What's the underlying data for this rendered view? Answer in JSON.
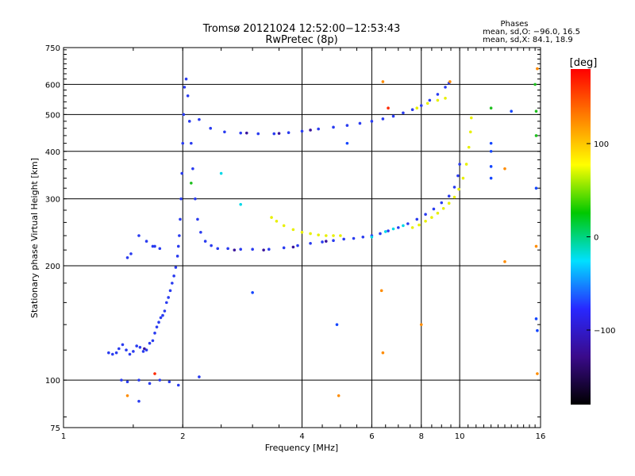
{
  "header": {
    "title_line1": "Tromsø 20121024 12:52:00−12:53:43",
    "title_line2": "RwPretec (8p)",
    "stats_title": "Phases",
    "stats_o": "mean, sd,O: −96.0, 16.5",
    "stats_x": "mean, sd,X:  84.1, 18.9"
  },
  "chart_data": {
    "type": "scatter",
    "xlabel": "Frequency [MHz]",
    "ylabel": "Stationary phase Virtual Height [km]",
    "xscale": "log",
    "yscale": "log",
    "xlim": [
      1,
      16
    ],
    "ylim": [
      75,
      750
    ],
    "x_ticks": [
      1,
      2,
      4,
      6,
      8,
      10,
      16
    ],
    "x_tick_labels": [
      "1",
      "2",
      "4",
      "6",
      "8",
      "10",
      "16"
    ],
    "y_ticks": [
      75,
      100,
      200,
      300,
      400,
      500,
      600,
      750
    ],
    "y_tick_labels": [
      "75",
      "100",
      "200",
      "300",
      "400",
      "500",
      "600",
      "750"
    ],
    "gridlines_x": [
      2,
      4,
      6,
      8,
      10
    ],
    "gridlines_y": [
      100,
      200,
      300,
      400,
      500,
      600
    ],
    "colorbar": {
      "label": "[deg]",
      "range": [
        -180,
        180
      ],
      "tick_values": [
        100,
        0,
        -100
      ],
      "tick_labels": [
        "100",
        "0",
        "−100"
      ],
      "stops": [
        "#000000",
        "#3a0a8a",
        "#2828ff",
        "#00e0ff",
        "#00c800",
        "#ffff00",
        "#ff8000",
        "#ff0000"
      ]
    },
    "series": [
      {
        "color": "#2a3cf0",
        "points": [
          [
            1.3,
            118
          ],
          [
            1.33,
            117
          ],
          [
            1.36,
            118
          ],
          [
            1.38,
            121
          ],
          [
            1.41,
            124
          ],
          [
            1.44,
            120
          ],
          [
            1.47,
            117
          ],
          [
            1.5,
            119
          ],
          [
            1.53,
            123
          ],
          [
            1.56,
            122
          ],
          [
            1.59,
            119
          ],
          [
            1.62,
            120
          ],
          [
            1.65,
            125
          ],
          [
            1.68,
            127
          ],
          [
            1.7,
            133
          ],
          [
            1.72,
            138
          ],
          [
            1.74,
            142
          ],
          [
            1.76,
            146
          ],
          [
            1.78,
            148
          ],
          [
            1.8,
            152
          ],
          [
            1.82,
            160
          ],
          [
            1.84,
            165
          ],
          [
            1.86,
            172
          ],
          [
            1.88,
            180
          ],
          [
            1.9,
            188
          ],
          [
            1.92,
            198
          ],
          [
            1.94,
            212
          ],
          [
            1.95,
            225
          ],
          [
            1.96,
            240
          ],
          [
            1.97,
            265
          ],
          [
            1.98,
            300
          ],
          [
            1.99,
            350
          ],
          [
            2.0,
            420
          ],
          [
            2.01,
            500
          ],
          [
            2.02,
            590
          ],
          [
            2.04,
            620
          ],
          [
            2.06,
            560
          ],
          [
            2.08,
            480
          ],
          [
            2.1,
            420
          ],
          [
            2.12,
            360
          ],
          [
            2.15,
            300
          ],
          [
            2.18,
            265
          ],
          [
            2.22,
            245
          ],
          [
            2.28,
            232
          ],
          [
            2.36,
            226
          ],
          [
            2.45,
            222
          ],
          [
            2.6,
            222
          ],
          [
            2.8,
            221
          ],
          [
            3.0,
            221
          ],
          [
            3.3,
            221
          ],
          [
            3.6,
            223
          ],
          [
            3.9,
            226
          ],
          [
            4.2,
            229
          ],
          [
            4.5,
            231
          ],
          [
            4.8,
            233
          ],
          [
            5.1,
            235
          ],
          [
            5.4,
            236
          ],
          [
            5.7,
            238
          ],
          [
            6.0,
            240
          ],
          [
            6.3,
            243
          ],
          [
            6.6,
            247
          ],
          [
            7.0,
            252
          ],
          [
            7.4,
            258
          ],
          [
            7.8,
            265
          ],
          [
            8.2,
            273
          ],
          [
            8.6,
            282
          ],
          [
            9.0,
            293
          ],
          [
            9.4,
            305
          ],
          [
            9.7,
            322
          ],
          [
            9.9,
            345
          ],
          [
            10.0,
            370
          ],
          [
            2.2,
            485
          ],
          [
            2.35,
            460
          ],
          [
            2.55,
            450
          ],
          [
            2.8,
            447
          ],
          [
            3.1,
            445
          ],
          [
            3.4,
            445
          ],
          [
            3.7,
            448
          ],
          [
            4.0,
            452
          ],
          [
            4.4,
            458
          ],
          [
            4.8,
            463
          ],
          [
            5.2,
            468
          ],
          [
            5.6,
            474
          ],
          [
            6.0,
            480
          ],
          [
            6.4,
            487
          ],
          [
            6.8,
            495
          ],
          [
            7.2,
            505
          ],
          [
            7.6,
            515
          ],
          [
            8.0,
            528
          ],
          [
            8.4,
            545
          ],
          [
            8.8,
            565
          ],
          [
            9.2,
            590
          ],
          [
            9.4,
            605
          ],
          [
            1.4,
            100
          ],
          [
            1.45,
            99
          ],
          [
            1.55,
            100
          ],
          [
            1.65,
            98
          ],
          [
            1.75,
            100
          ],
          [
            1.85,
            99
          ],
          [
            1.95,
            97
          ],
          [
            2.2,
            102
          ],
          [
            1.55,
            88
          ],
          [
            1.45,
            210
          ],
          [
            1.48,
            215
          ],
          [
            1.55,
            240
          ],
          [
            1.62,
            232
          ],
          [
            1.68,
            225
          ],
          [
            1.75,
            222
          ],
          [
            1.7,
            225
          ]
        ]
      },
      {
        "color": "#3a149c",
        "points": [
          [
            2.7,
            220
          ],
          [
            3.2,
            220
          ],
          [
            3.8,
            224
          ],
          [
            4.6,
            232
          ],
          [
            2.9,
            447
          ],
          [
            3.5,
            446
          ],
          [
            4.2,
            455
          ],
          [
            1.6,
            121
          ]
        ]
      },
      {
        "color": "#e8f000",
        "points": [
          [
            3.35,
            268
          ],
          [
            3.45,
            262
          ],
          [
            3.6,
            255
          ],
          [
            3.8,
            249
          ],
          [
            4.0,
            245
          ],
          [
            4.2,
            243
          ],
          [
            4.4,
            241
          ],
          [
            4.6,
            240
          ],
          [
            4.8,
            240
          ],
          [
            5.0,
            240
          ],
          [
            7.6,
            252
          ],
          [
            7.9,
            256
          ],
          [
            8.2,
            262
          ],
          [
            8.5,
            268
          ],
          [
            8.8,
            275
          ],
          [
            9.1,
            283
          ],
          [
            9.4,
            292
          ],
          [
            9.7,
            303
          ],
          [
            9.95,
            318
          ],
          [
            10.2,
            340
          ],
          [
            10.4,
            370
          ],
          [
            10.55,
            410
          ],
          [
            10.65,
            450
          ],
          [
            10.7,
            490
          ],
          [
            7.8,
            520
          ],
          [
            8.3,
            535
          ],
          [
            8.8,
            545
          ],
          [
            9.2,
            552
          ]
        ]
      },
      {
        "color": "#00d8e8",
        "points": [
          [
            6.0,
            238
          ],
          [
            6.5,
            246
          ],
          [
            7.2,
            255
          ],
          [
            6.8,
            250
          ],
          [
            2.8,
            290
          ],
          [
            2.5,
            350
          ]
        ]
      },
      {
        "color": "#ff8c00",
        "points": [
          [
            6.35,
            172
          ],
          [
            6.4,
            118
          ],
          [
            8.0,
            140
          ],
          [
            1.45,
            91
          ],
          [
            4.95,
            91
          ],
          [
            9.45,
            610
          ],
          [
            13.0,
            205
          ],
          [
            13.0,
            360
          ],
          [
            6.4,
            610
          ],
          [
            15.6,
            225
          ],
          [
            15.7,
            104
          ],
          [
            15.7,
            660
          ]
        ]
      },
      {
        "color": "#20c020",
        "points": [
          [
            15.6,
            440
          ],
          [
            15.6,
            510
          ],
          [
            15.5,
            600
          ],
          [
            12.0,
            520
          ],
          [
            2.1,
            330
          ]
        ]
      },
      {
        "color": "#ff2a00",
        "points": [
          [
            1.7,
            104
          ],
          [
            6.6,
            520
          ]
        ]
      },
      {
        "color": "#1446ff",
        "points": [
          [
            12.0,
            400
          ],
          [
            12.0,
            365
          ],
          [
            12.0,
            340
          ],
          [
            13.5,
            510
          ],
          [
            15.6,
            145
          ],
          [
            15.6,
            320
          ],
          [
            4.9,
            140
          ],
          [
            3.0,
            170
          ],
          [
            5.2,
            420
          ],
          [
            15.7,
            135
          ],
          [
            12.0,
            420
          ]
        ]
      }
    ]
  }
}
